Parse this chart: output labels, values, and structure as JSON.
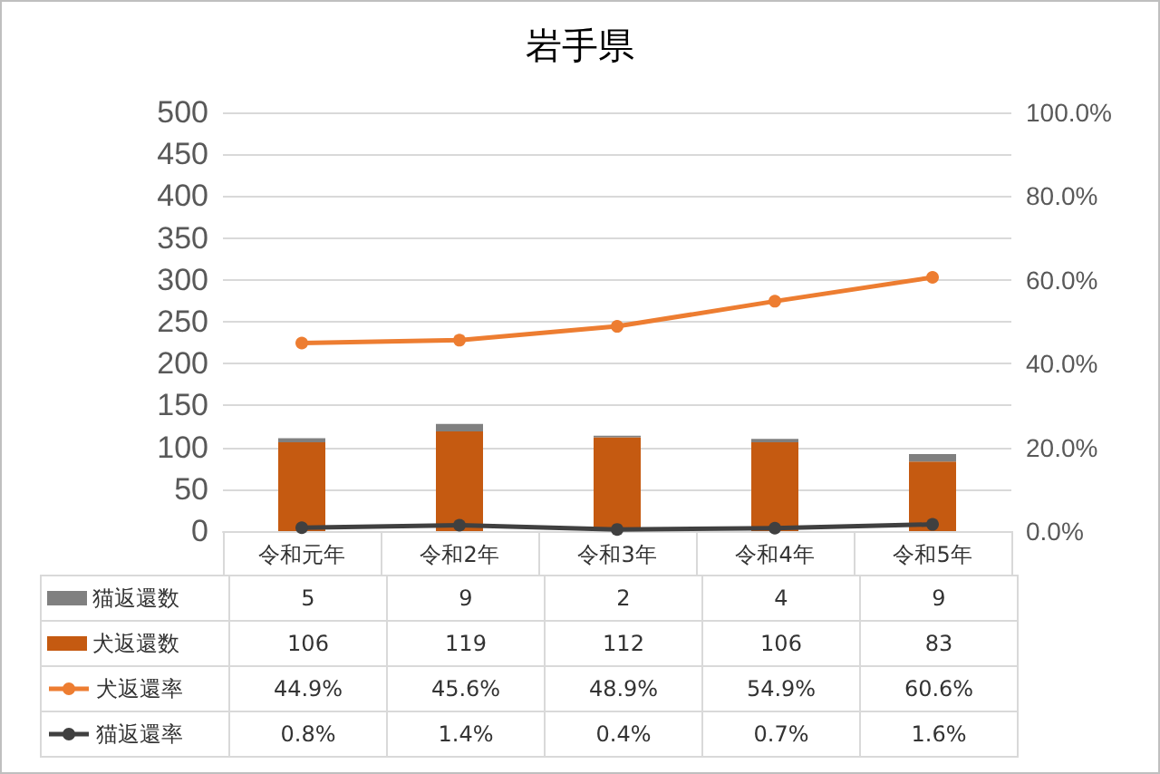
{
  "chart_data": {
    "type": "bar",
    "title": "岩手県",
    "categories": [
      "令和元年",
      "令和2年",
      "令和3年",
      "令和4年",
      "令和5年"
    ],
    "stacked": true,
    "series": [
      {
        "name": "犬返還数",
        "color": "#c55a11",
        "values": [
          106,
          119,
          112,
          106,
          83
        ],
        "value_labels": [
          "106",
          "119",
          "112",
          "106",
          "83"
        ]
      },
      {
        "name": "猫返還数",
        "color": "#808080",
        "values": [
          5,
          9,
          2,
          4,
          9
        ],
        "value_labels": [
          "5",
          "9",
          "2",
          "4",
          "9"
        ]
      },
      {
        "name": "犬返還率",
        "type": "line",
        "axis": "y2",
        "color": "#ed7d31",
        "values": [
          44.9,
          45.6,
          48.9,
          54.9,
          60.6
        ],
        "value_labels": [
          "44.9%",
          "45.6%",
          "48.9%",
          "54.9%",
          "60.6%"
        ]
      },
      {
        "name": "猫返還率",
        "type": "line",
        "axis": "y2",
        "color": "#404040",
        "values": [
          0.8,
          1.4,
          0.4,
          0.7,
          1.6
        ],
        "value_labels": [
          "0.8%",
          "1.4%",
          "0.4%",
          "0.7%",
          "1.6%"
        ]
      }
    ],
    "ylim": [
      0,
      500
    ],
    "yticks": [
      0,
      50,
      100,
      150,
      200,
      250,
      300,
      350,
      400,
      450,
      500
    ],
    "y2lim": [
      0,
      100
    ],
    "y2ticks": [
      {
        "value": 0,
        "label": "0.0%"
      },
      {
        "value": 20,
        "label": "20.0%"
      },
      {
        "value": 40,
        "label": "40.0%"
      },
      {
        "value": 60,
        "label": "60.0%"
      },
      {
        "value": 80,
        "label": "80.0%"
      },
      {
        "value": 100,
        "label": "100.0%"
      }
    ],
    "grid": "y",
    "legend": "bottom",
    "marker": "circle"
  }
}
